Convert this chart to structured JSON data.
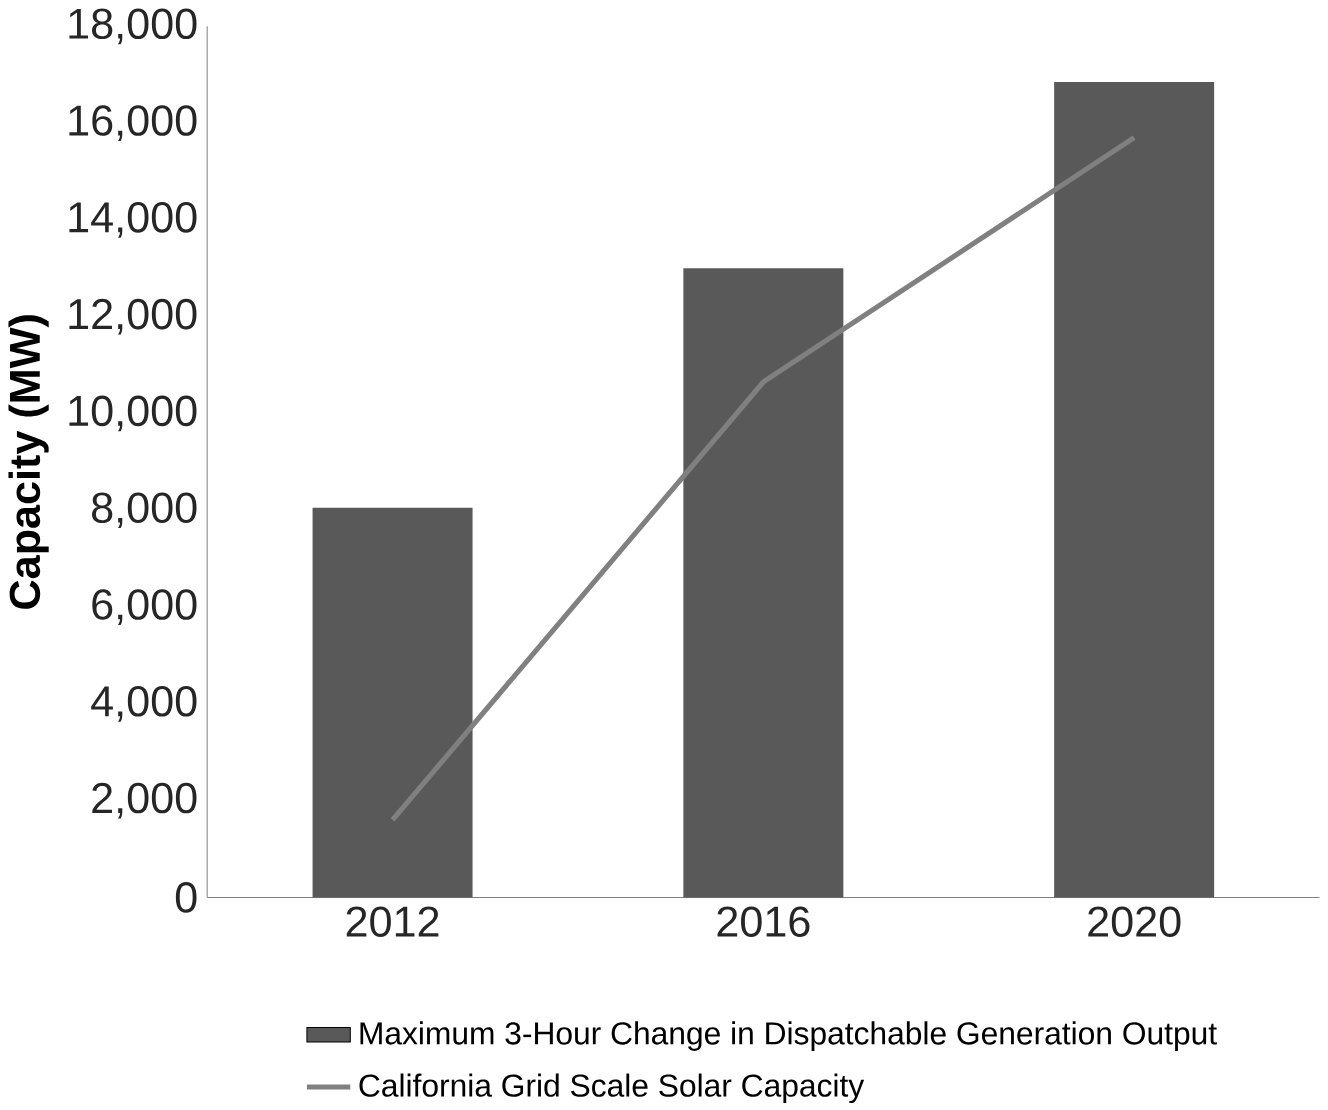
{
  "chart_data": {
    "type": "bar",
    "ylabel": "Capacity (MW)",
    "categories": [
      "2012",
      "2016",
      "2020"
    ],
    "series": [
      {
        "name": "Maximum 3-Hour Change in Dispatchable Generation Output",
        "color": "#595959",
        "values": [
          8050,
          13000,
          16850
        ]
      },
      {
        "name": "California Grid Scale Solar Capacity",
        "type": "line",
        "color": "#808080",
        "values": [
          1600,
          10650,
          15700
        ]
      }
    ],
    "ylim": [
      0,
      18000
    ],
    "yticks": [
      {
        "value": 0,
        "label": "0"
      },
      {
        "value": 2000,
        "label": "2,000"
      },
      {
        "value": 4000,
        "label": "4,000"
      },
      {
        "value": 6000,
        "label": "6,000"
      },
      {
        "value": 8000,
        "label": "8,000"
      },
      {
        "value": 10000,
        "label": "10,000"
      },
      {
        "value": 12000,
        "label": "12,000"
      },
      {
        "value": 14000,
        "label": "14,000"
      },
      {
        "value": 16000,
        "label": "16,000"
      },
      {
        "value": 18000,
        "label": "18,000"
      }
    ],
    "grid": false,
    "legend": "bottom",
    "marker": "none"
  }
}
